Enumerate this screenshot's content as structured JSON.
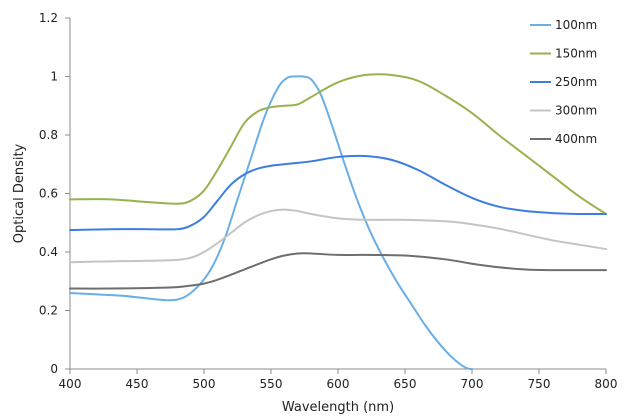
{
  "chart_data": {
    "type": "line",
    "title": "",
    "xlabel": "Wavelength (nm)",
    "ylabel": "Optical Density",
    "xlim": [
      400,
      800
    ],
    "ylim": [
      0,
      1.2
    ],
    "xticks": [
      "400",
      "450",
      "500",
      "550",
      "600",
      "650",
      "700",
      "750",
      "800"
    ],
    "yticks": [
      "0",
      "0.2",
      "0.4",
      "0.6",
      "0.8",
      "1",
      "1.2"
    ],
    "grid": false,
    "legend_position": "top-right",
    "series": [
      {
        "name": "100nm",
        "color": "#6aaee6",
        "x": [
          400,
          420,
          440,
          460,
          475,
          485,
          495,
          505,
          515,
          525,
          535,
          545,
          555,
          562,
          568,
          574,
          580,
          587,
          595,
          605,
          615,
          625,
          635,
          645,
          655,
          665,
          675,
          685,
          695,
          700
        ],
        "y": [
          0.26,
          0.255,
          0.25,
          0.24,
          0.235,
          0.245,
          0.28,
          0.34,
          0.44,
          0.58,
          0.72,
          0.86,
          0.96,
          0.995,
          1.0,
          1.0,
          0.99,
          0.94,
          0.84,
          0.7,
          0.57,
          0.46,
          0.37,
          0.29,
          0.22,
          0.15,
          0.09,
          0.04,
          0.005,
          0.0
        ]
      },
      {
        "name": "150nm",
        "color": "#98b24f",
        "x": [
          400,
          430,
          460,
          480,
          490,
          500,
          510,
          520,
          530,
          540,
          550,
          560,
          570,
          580,
          600,
          620,
          640,
          660,
          680,
          700,
          720,
          740,
          760,
          780,
          800
        ],
        "y": [
          0.58,
          0.58,
          0.57,
          0.565,
          0.575,
          0.61,
          0.68,
          0.76,
          0.84,
          0.88,
          0.895,
          0.9,
          0.905,
          0.93,
          0.98,
          1.005,
          1.005,
          0.985,
          0.935,
          0.875,
          0.8,
          0.73,
          0.66,
          0.59,
          0.53
        ]
      },
      {
        "name": "250nm",
        "color": "#3c7ee0",
        "x": [
          400,
          430,
          460,
          480,
          490,
          500,
          510,
          520,
          530,
          540,
          550,
          560,
          580,
          600,
          620,
          640,
          660,
          680,
          700,
          720,
          740,
          760,
          780,
          800
        ],
        "y": [
          0.475,
          0.478,
          0.478,
          0.478,
          0.49,
          0.52,
          0.575,
          0.63,
          0.665,
          0.685,
          0.695,
          0.7,
          0.71,
          0.725,
          0.728,
          0.715,
          0.68,
          0.63,
          0.585,
          0.555,
          0.54,
          0.533,
          0.53,
          0.53
        ]
      },
      {
        "name": "300nm",
        "color": "#c4c4c4",
        "x": [
          400,
          430,
          460,
          480,
          490,
          500,
          510,
          520,
          530,
          540,
          550,
          560,
          570,
          580,
          600,
          620,
          650,
          680,
          700,
          720,
          740,
          760,
          780,
          800
        ],
        "y": [
          0.365,
          0.368,
          0.37,
          0.373,
          0.38,
          0.4,
          0.43,
          0.465,
          0.5,
          0.525,
          0.54,
          0.545,
          0.54,
          0.53,
          0.515,
          0.51,
          0.51,
          0.505,
          0.495,
          0.48,
          0.46,
          0.44,
          0.425,
          0.41
        ]
      },
      {
        "name": "400nm",
        "color": "#6e6e6e",
        "x": [
          400,
          430,
          460,
          480,
          490,
          500,
          510,
          520,
          530,
          540,
          550,
          560,
          570,
          580,
          600,
          620,
          650,
          680,
          700,
          720,
          740,
          760,
          780,
          800
        ],
        "y": [
          0.275,
          0.275,
          0.277,
          0.28,
          0.285,
          0.292,
          0.305,
          0.322,
          0.34,
          0.358,
          0.375,
          0.388,
          0.395,
          0.395,
          0.39,
          0.39,
          0.388,
          0.375,
          0.36,
          0.348,
          0.34,
          0.338,
          0.338,
          0.338
        ]
      }
    ]
  }
}
